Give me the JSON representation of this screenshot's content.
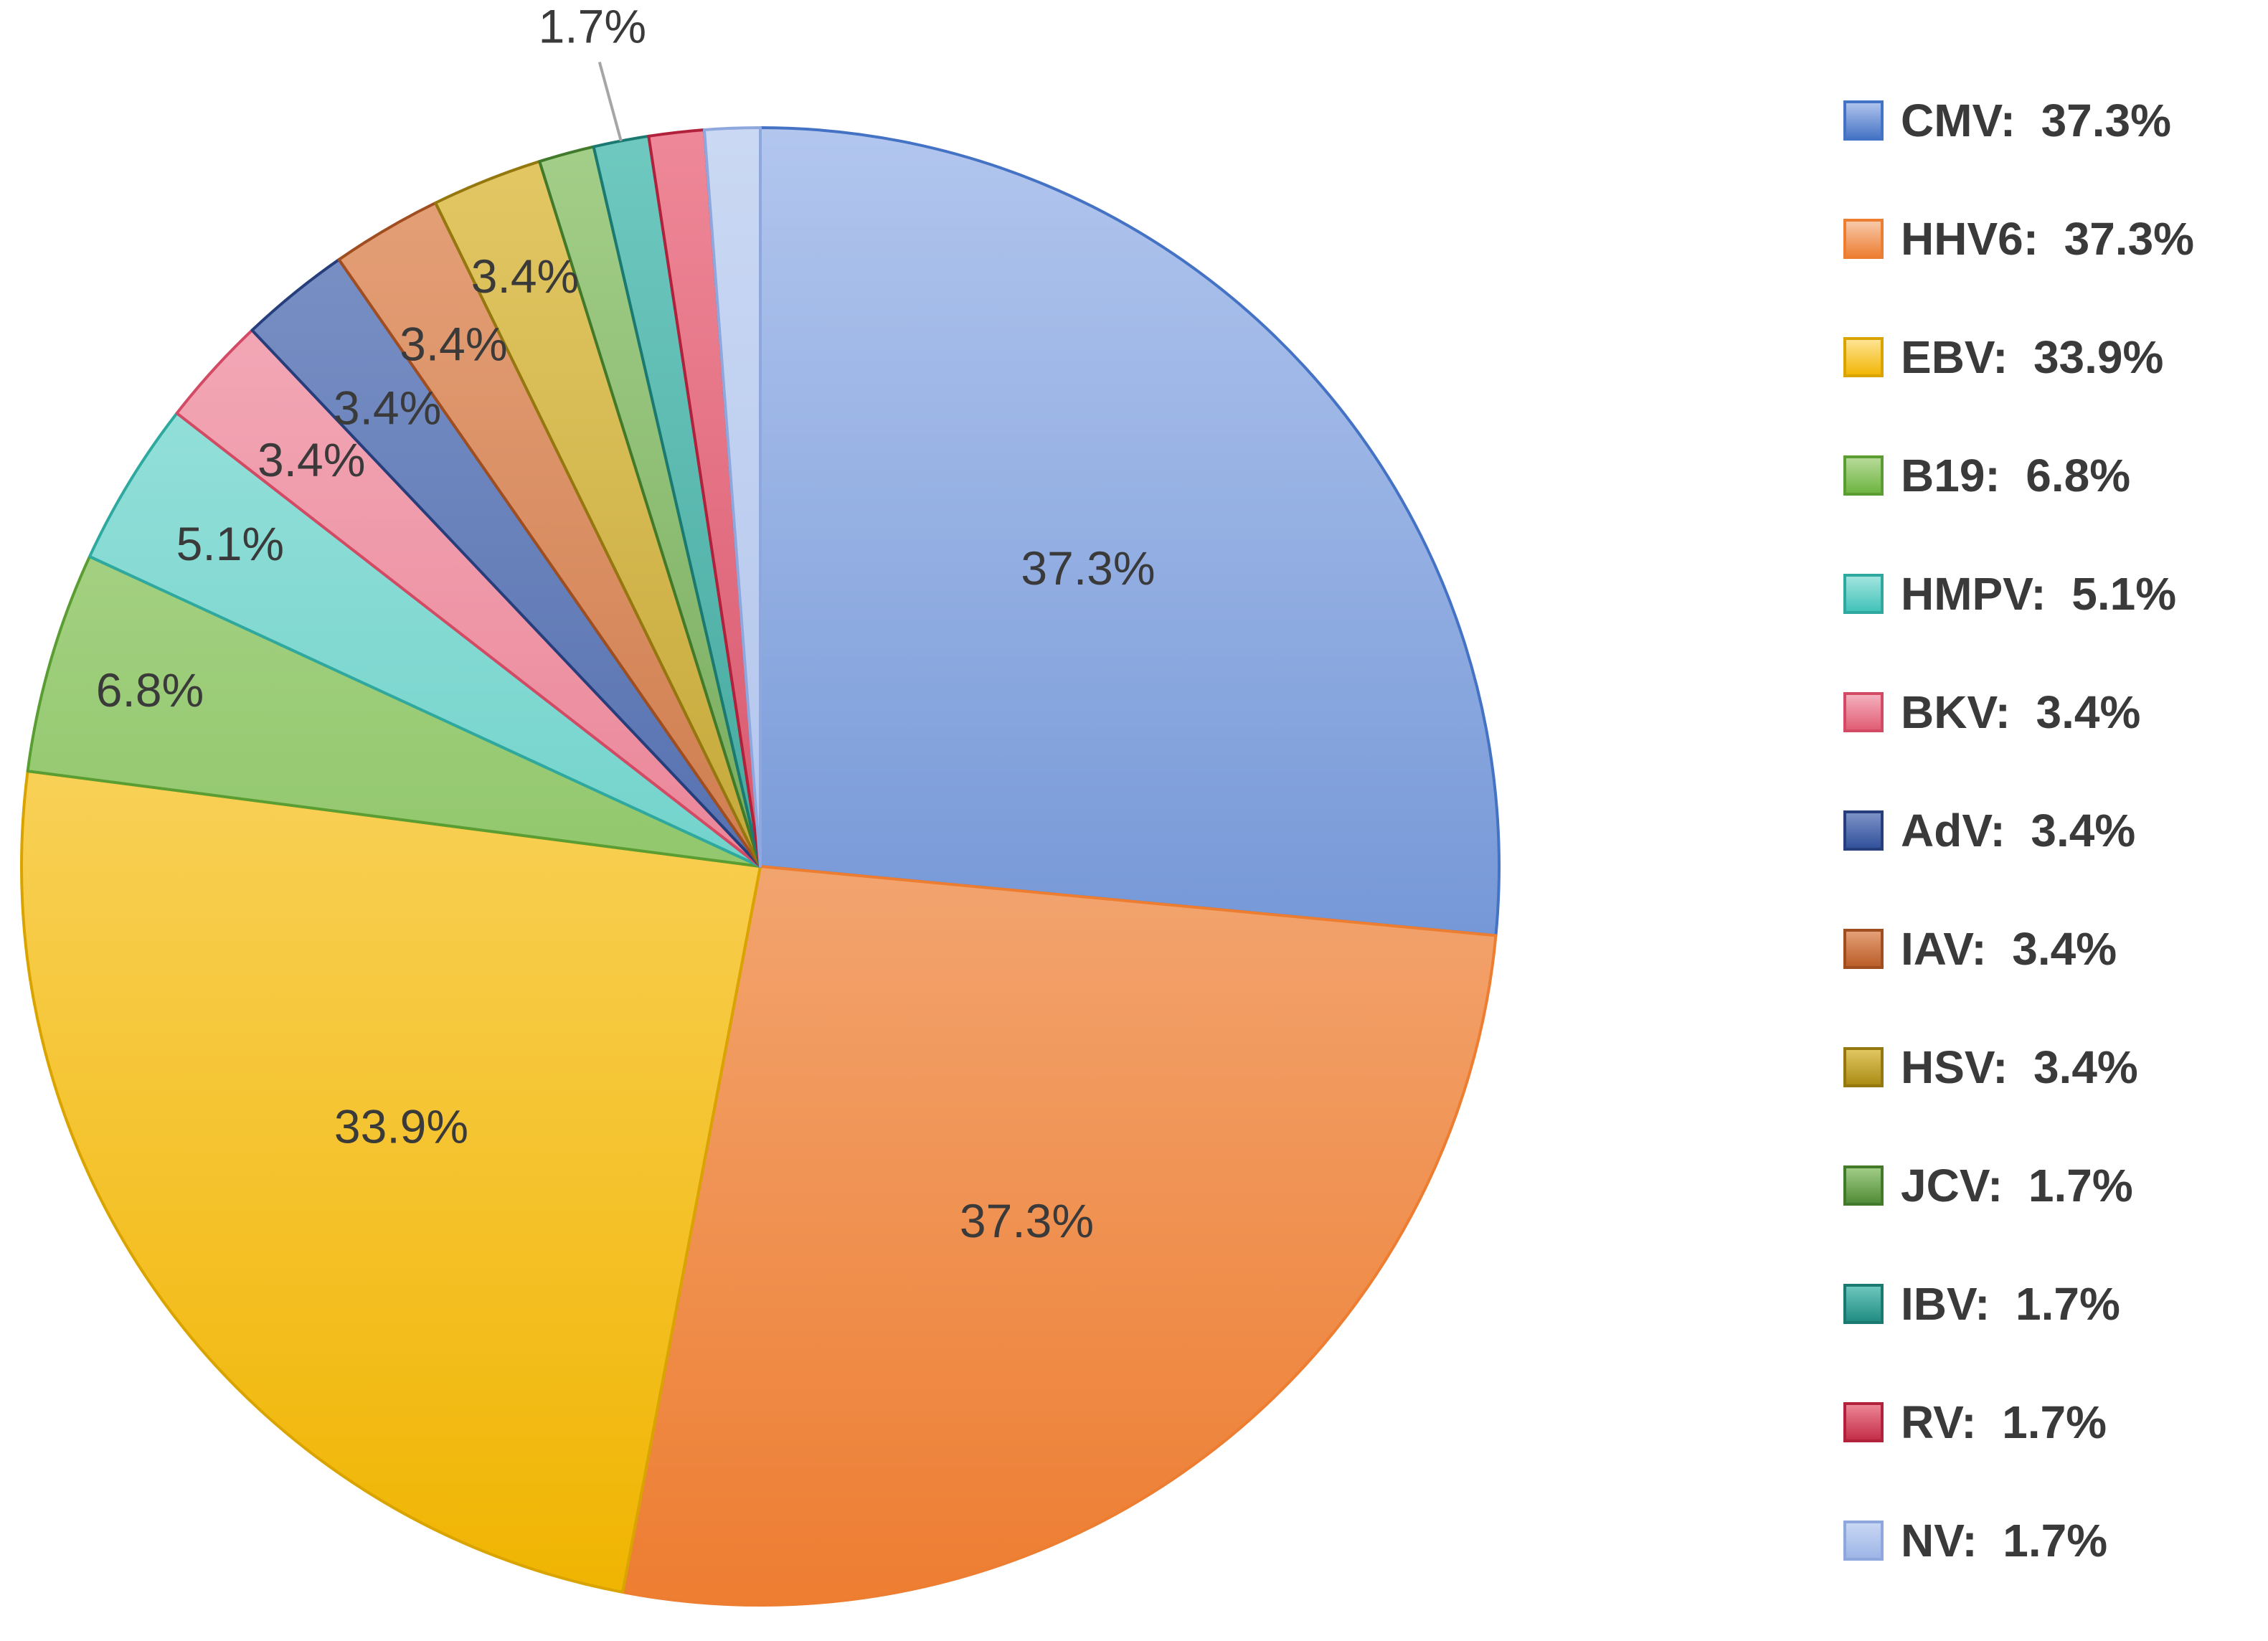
{
  "chart_data": {
    "type": "pie",
    "start_angle_deg": 0,
    "direction": "clockwise",
    "legend_position": "right",
    "slices": [
      {
        "name": "CMV",
        "value": 37.3,
        "slice_label": "37.3%",
        "legend_label": "CMV:  37.3%",
        "color_light": "#b2c6ee",
        "color_dark": "#4472c4",
        "edge": "#4472c4"
      },
      {
        "name": "HHV6",
        "value": 37.3,
        "slice_label": "37.3%",
        "legend_label": "HHV6:  37.3%",
        "color_light": "#f8cbad",
        "color_dark": "#ed7d31",
        "edge": "#ed7d31"
      },
      {
        "name": "EBV",
        "value": 33.9,
        "slice_label": "33.9%",
        "legend_label": "EBV:  33.9%",
        "color_light": "#ffe699",
        "color_dark": "#f0b400",
        "edge": "#d9a400"
      },
      {
        "name": "B19",
        "value": 6.8,
        "slice_label": "6.8%",
        "legend_label": "B19:  6.8%",
        "color_light": "#b9dc9c",
        "color_dark": "#6cb33e",
        "edge": "#5a9e33"
      },
      {
        "name": "HMPV",
        "value": 5.1,
        "slice_label": "5.1%",
        "legend_label": "HMPV:  5.1%",
        "color_light": "#a6e6e0",
        "color_dark": "#3fc1b8",
        "edge": "#2fa9a0"
      },
      {
        "name": "BKV",
        "value": 3.4,
        "slice_label": "3.4%",
        "legend_label": "BKV:  3.4%",
        "color_light": "#f5b3c0",
        "color_dark": "#e05a72",
        "edge": "#d24a63"
      },
      {
        "name": "AdV",
        "value": 3.4,
        "slice_label": "3.4%",
        "legend_label": "AdV:  3.4%",
        "color_light": "#7f95c8",
        "color_dark": "#2f4f9a",
        "edge": "#263f7c"
      },
      {
        "name": "IAV",
        "value": 3.4,
        "slice_label": "3.4%",
        "legend_label": "IAV:  3.4%",
        "color_light": "#e6a27a",
        "color_dark": "#b95b26",
        "edge": "#a04e20"
      },
      {
        "name": "HSV",
        "value": 3.4,
        "slice_label": "3.4%",
        "legend_label": "HSV:  3.4%",
        "color_light": "#e3c865",
        "color_dark": "#a88a12",
        "edge": "#94780e"
      },
      {
        "name": "JCV",
        "value": 1.7,
        "slice_label": "",
        "legend_label": "JCV:  1.7%",
        "color_light": "#a4cf8a",
        "color_dark": "#4e8a34",
        "edge": "#427a2b"
      },
      {
        "name": "IBV",
        "value": 1.7,
        "slice_label": "1.7%",
        "legend_label": "IBV:  1.7%",
        "color_light": "#6fc9c0",
        "color_dark": "#1f8a80",
        "edge": "#1a7a71"
      },
      {
        "name": "RV",
        "value": 1.7,
        "slice_label": "",
        "legend_label": "RV:  1.7%",
        "color_light": "#ee8898",
        "color_dark": "#c32a45",
        "edge": "#b1213c"
      },
      {
        "name": "NV",
        "value": 1.7,
        "slice_label": "",
        "legend_label": "NV:  1.7%",
        "color_light": "#cad8f3",
        "color_dark": "#9cb4e6",
        "edge": "#8ea8de"
      }
    ]
  }
}
